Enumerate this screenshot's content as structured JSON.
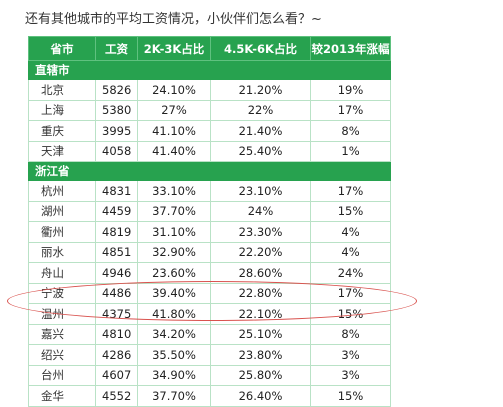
{
  "caption": "还有其他城市的平均工资情况，小伙伴们怎么看？~",
  "table": {
    "headers": [
      "省市",
      "工资",
      "2K-3K占比",
      "4.5K-6K占比",
      "较2013年涨幅"
    ],
    "groups": [
      {
        "name": "直辖市",
        "rows": [
          [
            "北京",
            "5826",
            "24.10%",
            "21.20%",
            "19%"
          ],
          [
            "上海",
            "5380",
            "27%",
            "22%",
            "17%"
          ],
          [
            "重庆",
            "3995",
            "41.10%",
            "21.40%",
            "8%"
          ],
          [
            "天津",
            "4058",
            "41.40%",
            "25.40%",
            "1%"
          ]
        ]
      },
      {
        "name": "浙江省",
        "rows": [
          [
            "杭州",
            "4831",
            "33.10%",
            "23.10%",
            "17%"
          ],
          [
            "湖州",
            "4459",
            "37.70%",
            "24%",
            "15%"
          ],
          [
            "衢州",
            "4819",
            "31.10%",
            "23.30%",
            "4%"
          ],
          [
            "丽水",
            "4851",
            "32.90%",
            "22.20%",
            "4%"
          ],
          [
            "舟山",
            "4946",
            "23.60%",
            "28.60%",
            "24%"
          ],
          [
            "宁波",
            "4486",
            "39.40%",
            "22.80%",
            "17%"
          ],
          [
            "温州",
            "4375",
            "41.80%",
            "22.10%",
            "15%"
          ],
          [
            "嘉兴",
            "4810",
            "34.20%",
            "25.10%",
            "8%"
          ],
          [
            "绍兴",
            "4286",
            "35.50%",
            "23.80%",
            "3%"
          ],
          [
            "台州",
            "4607",
            "34.90%",
            "25.80%",
            "3%"
          ],
          [
            "金华",
            "4552",
            "37.70%",
            "26.40%",
            "15%"
          ]
        ]
      }
    ]
  },
  "colors": {
    "header_green": "#27a24f",
    "border_green": "#b9e2c6",
    "annotation_red": "#d9534f"
  }
}
